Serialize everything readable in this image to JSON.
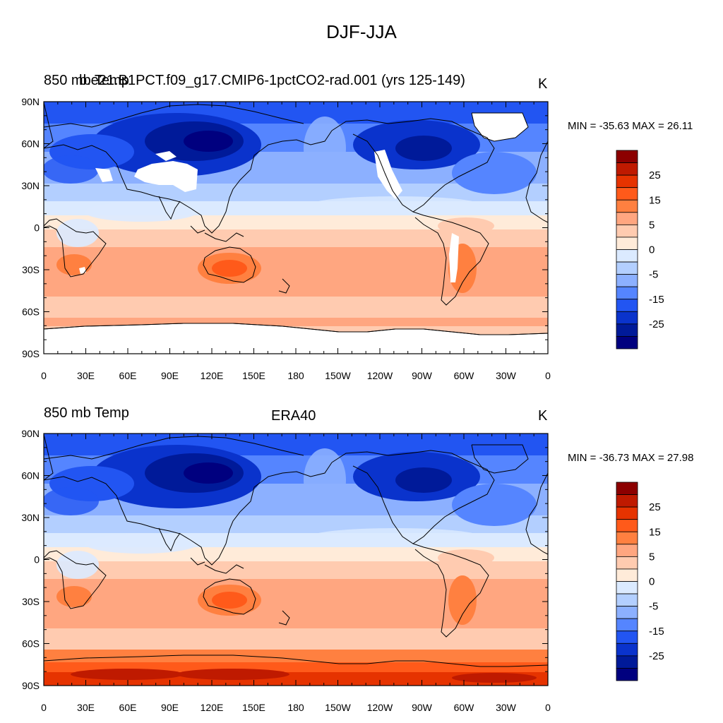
{
  "figure_title": "DJF-JJA",
  "colorbar": {
    "labels": [
      "25",
      "15",
      "5",
      "0",
      "-5",
      "-15",
      "-25"
    ],
    "colors": [
      "#8c0000",
      "#bf1a00",
      "#e63300",
      "#ff5a1a",
      "#ff8040",
      "#ffa680",
      "#ffcbb0",
      "#ffebd9",
      "#dbeaff",
      "#b3cfff",
      "#8cb0ff",
      "#5585ff",
      "#2255f2",
      "#0a33cc",
      "#001a99",
      "#00007f"
    ]
  },
  "axes": {
    "lat_labels": [
      "90N",
      "60N",
      "30N",
      "0",
      "30S",
      "60S",
      "90S"
    ],
    "lon_labels": [
      "0",
      "30E",
      "60E",
      "90E",
      "120E",
      "150E",
      "180",
      "150W",
      "120W",
      "90W",
      "60W",
      "30W",
      "0"
    ]
  },
  "panels": [
    {
      "variable": "850 mb Temp",
      "case": "b.e21.B1PCT.f09_g17.CMIP6-1pctCO2-rad.001 (yrs 125-149)",
      "units": "K",
      "min_max": "MIN = -35.63 MAX =  26.11",
      "missing_data_masks": true
    },
    {
      "variable": "850 mb Temp",
      "case": "ERA40",
      "units": "K",
      "min_max": "MIN = -36.73 MAX =  27.98",
      "missing_data_masks": false
    }
  ]
}
